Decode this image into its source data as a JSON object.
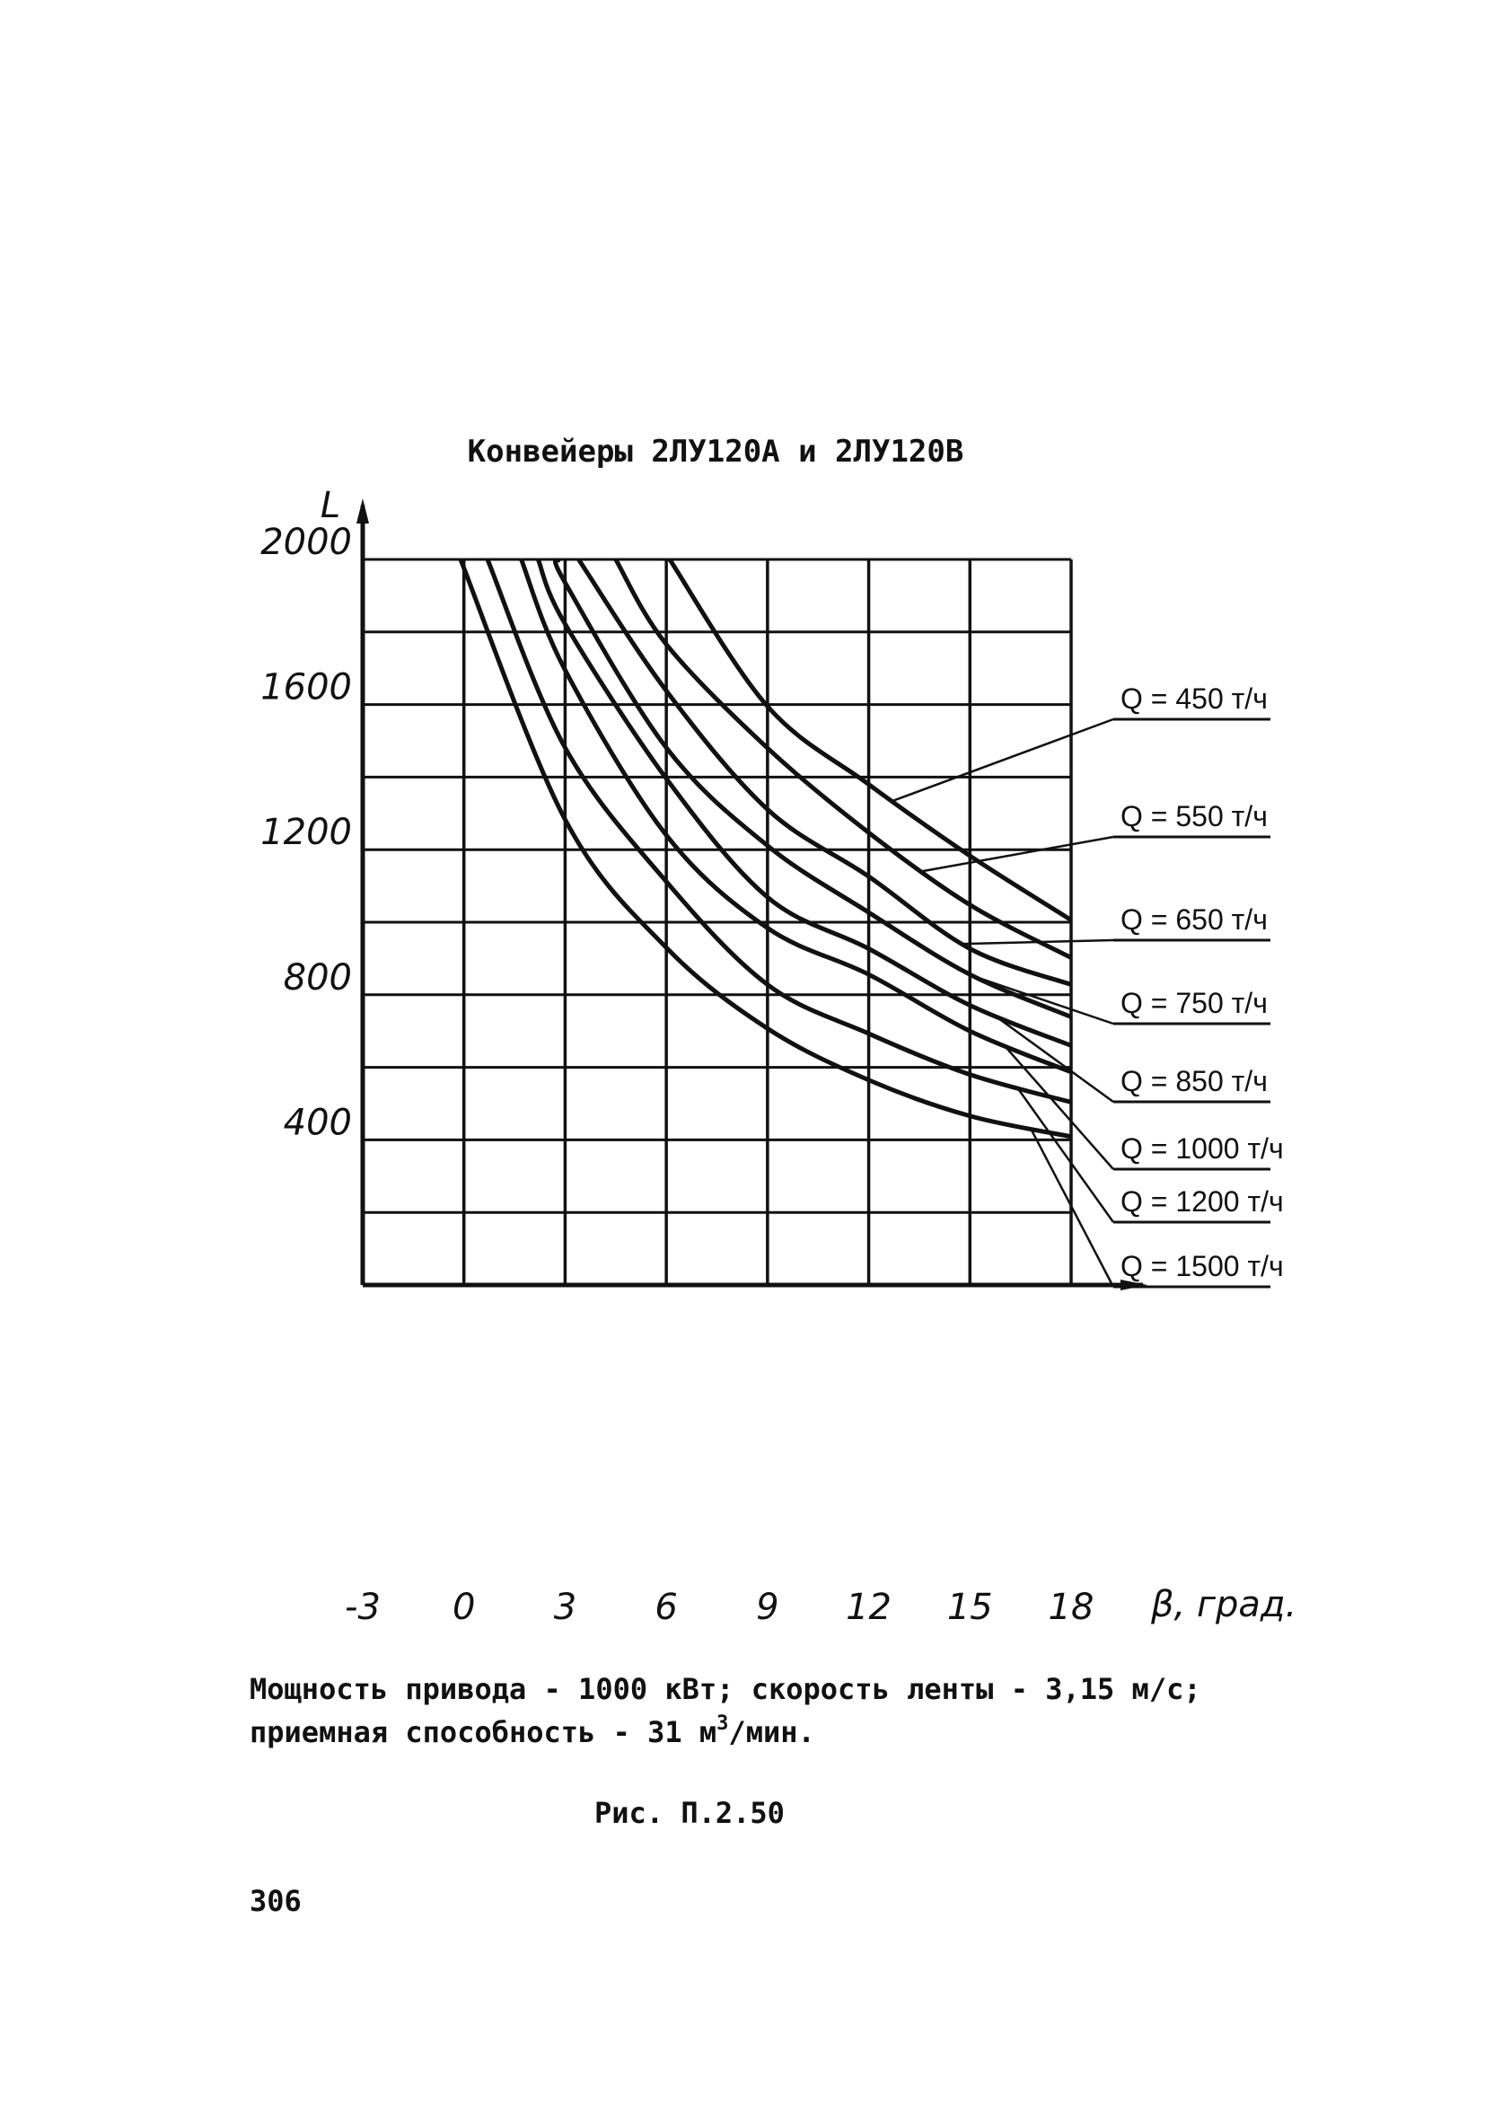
{
  "page": {
    "title": "Конвейеры 2ЛУ120А и 2ЛУ120В",
    "caption_line1": "Мощность привода - 1000 кВт; скорость ленты - 3,15 м/с;",
    "caption_line2_prefix": "приемная способность - 31 м",
    "caption_line2_sup": "3",
    "caption_line2_suffix": "/мин.",
    "figure_label": "Рис. П.2.50",
    "page_number": "306"
  },
  "chart_data": {
    "type": "line",
    "title": "Конвейеры 2ЛУ120А и 2ЛУ120В",
    "xlabel": "β, град.",
    "ylabel": "L",
    "xlim": [
      -3,
      18
    ],
    "ylim": [
      0,
      2000
    ],
    "grid": true,
    "x_ticks": [
      -3,
      0,
      3,
      6,
      9,
      12,
      15,
      18
    ],
    "x_tick_labels": [
      "-3",
      "0",
      "3",
      "6",
      "9",
      "12",
      "15",
      "18"
    ],
    "y_ticks": [
      400,
      800,
      1200,
      1600,
      2000
    ],
    "y_tick_labels": [
      "400",
      "800",
      "1200",
      "1600",
      "2000"
    ],
    "legend_placement": "right",
    "series": [
      {
        "name": "Q = 450 т/ч",
        "points": [
          [
            6.1,
            2000
          ],
          [
            9,
            1595
          ],
          [
            12,
            1380
          ],
          [
            15,
            1183
          ],
          [
            18,
            1006
          ]
        ],
        "leader_x": 12.7
      },
      {
        "name": "Q = 550 т/ч",
        "points": [
          [
            4.5,
            2000
          ],
          [
            6,
            1766
          ],
          [
            9,
            1480
          ],
          [
            12,
            1247
          ],
          [
            15,
            1048
          ],
          [
            18,
            902
          ]
        ],
        "leader_x": 13.6
      },
      {
        "name": "Q = 650 т/ч",
        "points": [
          [
            3.4,
            2000
          ],
          [
            6,
            1638
          ],
          [
            9,
            1311
          ],
          [
            12,
            1126
          ],
          [
            15,
            927
          ],
          [
            18,
            828
          ]
        ],
        "leader_x": 14.8
      },
      {
        "name": "Q = 750 т/ч",
        "points": [
          [
            2.8,
            2000
          ],
          [
            3,
            1936
          ],
          [
            6,
            1481
          ],
          [
            9,
            1211
          ],
          [
            12,
            1027
          ],
          [
            15,
            856
          ],
          [
            18,
            739
          ]
        ],
        "leader_x": 15.2
      },
      {
        "name": "Q = 850 т/ч",
        "points": [
          [
            2.2,
            2000
          ],
          [
            3,
            1822
          ],
          [
            6,
            1396
          ],
          [
            9,
            1069
          ],
          [
            12,
            927
          ],
          [
            15,
            771
          ],
          [
            18,
            660
          ]
        ],
        "leader_x": 15.7
      },
      {
        "name": "Q = 1000 т/ч",
        "points": [
          [
            1.7,
            2000
          ],
          [
            3,
            1695
          ],
          [
            6,
            1240
          ],
          [
            9,
            984
          ],
          [
            12,
            856
          ],
          [
            15,
            700
          ],
          [
            18,
            587
          ]
        ],
        "leader_x": 16.0
      },
      {
        "name": "Q = 1200 т/ч",
        "points": [
          [
            0.7,
            2000
          ],
          [
            3,
            1481
          ],
          [
            6,
            1112
          ],
          [
            9,
            828
          ],
          [
            12,
            693
          ],
          [
            15,
            580
          ],
          [
            18,
            504
          ]
        ],
        "leader_x": 16.4
      },
      {
        "name": "Q = 1500 т/ч",
        "points": [
          [
            -0.1,
            2000
          ],
          [
            3,
            1283
          ],
          [
            6,
            930
          ],
          [
            9,
            707
          ],
          [
            12,
            565
          ],
          [
            15,
            466
          ],
          [
            18,
            409
          ]
        ],
        "leader_x": 16.8
      }
    ]
  }
}
